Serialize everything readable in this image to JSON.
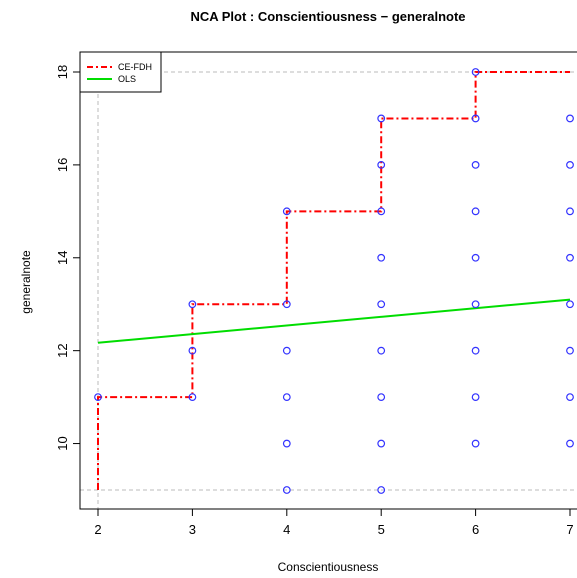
{
  "chart_data": {
    "type": "scatter",
    "title": "NCA Plot : Conscientiousness − generalnote",
    "xlabel": "Conscientiousness",
    "ylabel": "generalnote",
    "xlim": [
      2,
      7
    ],
    "ylim": [
      9,
      18
    ],
    "x_ticks": [
      "2",
      "3",
      "4",
      "5",
      "6",
      "7"
    ],
    "y_ticks": [
      "10",
      "12",
      "14",
      "16",
      "18"
    ],
    "points": [
      {
        "x": 2,
        "y": 11
      },
      {
        "x": 3,
        "y": 11
      },
      {
        "x": 3,
        "y": 12
      },
      {
        "x": 3,
        "y": 13
      },
      {
        "x": 4,
        "y": 9
      },
      {
        "x": 4,
        "y": 10
      },
      {
        "x": 4,
        "y": 11
      },
      {
        "x": 4,
        "y": 12
      },
      {
        "x": 4,
        "y": 13
      },
      {
        "x": 4,
        "y": 15
      },
      {
        "x": 5,
        "y": 9
      },
      {
        "x": 5,
        "y": 10
      },
      {
        "x": 5,
        "y": 11
      },
      {
        "x": 5,
        "y": 12
      },
      {
        "x": 5,
        "y": 13
      },
      {
        "x": 5,
        "y": 14
      },
      {
        "x": 5,
        "y": 15
      },
      {
        "x": 5,
        "y": 16
      },
      {
        "x": 5,
        "y": 17
      },
      {
        "x": 6,
        "y": 10
      },
      {
        "x": 6,
        "y": 11
      },
      {
        "x": 6,
        "y": 12
      },
      {
        "x": 6,
        "y": 13
      },
      {
        "x": 6,
        "y": 14
      },
      {
        "x": 6,
        "y": 15
      },
      {
        "x": 6,
        "y": 16
      },
      {
        "x": 6,
        "y": 17
      },
      {
        "x": 6,
        "y": 18
      },
      {
        "x": 7,
        "y": 10
      },
      {
        "x": 7,
        "y": 11
      },
      {
        "x": 7,
        "y": 12
      },
      {
        "x": 7,
        "y": 13
      },
      {
        "x": 7,
        "y": 14
      },
      {
        "x": 7,
        "y": 15
      },
      {
        "x": 7,
        "y": 16
      },
      {
        "x": 7,
        "y": 17
      }
    ],
    "series": [
      {
        "name": "CE-FDH",
        "kind": "step",
        "color": "#ff0000",
        "values": [
          [
            2,
            9
          ],
          [
            2,
            11
          ],
          [
            3,
            11
          ],
          [
            3,
            13
          ],
          [
            4,
            13
          ],
          [
            4,
            15
          ],
          [
            5,
            15
          ],
          [
            5,
            17
          ],
          [
            6,
            17
          ],
          [
            6,
            18
          ],
          [
            7,
            18
          ]
        ]
      },
      {
        "name": "OLS",
        "kind": "line",
        "color": "#00dd00",
        "values": [
          [
            2,
            12.17
          ],
          [
            7,
            13.1
          ]
        ]
      }
    ],
    "point_color": "#3333ff",
    "grid": false,
    "limit_lines": "dashed grey at x=2, y=9, y=18",
    "legend_position": "top-left"
  }
}
